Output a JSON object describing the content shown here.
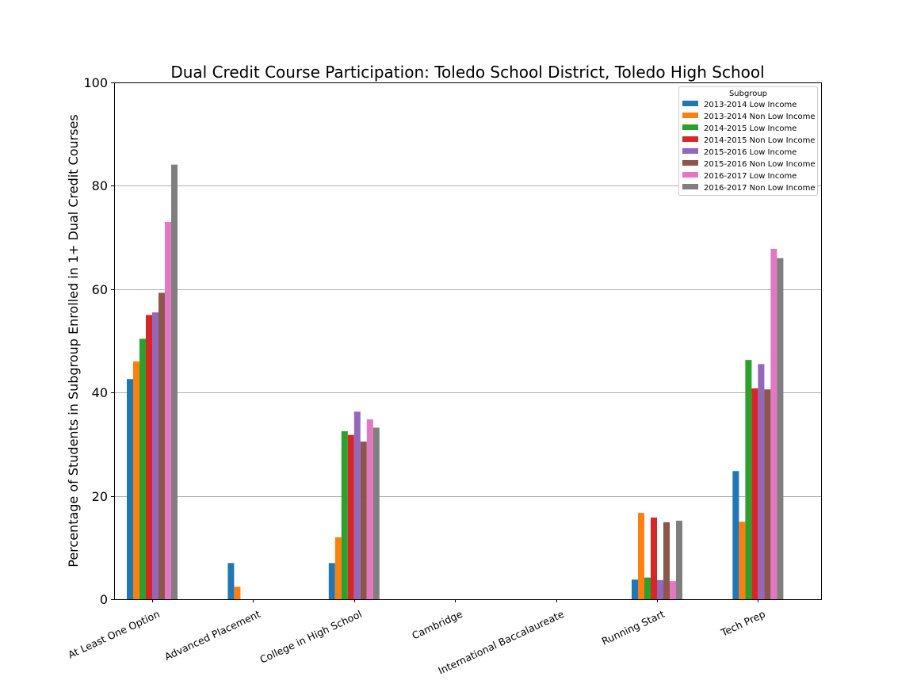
{
  "chart_data": {
    "type": "bar",
    "title": "Dual Credit Course Participation: Toledo School District, Toledo High School",
    "ylabel": "Percentage of Students in Subgroup Enrolled in 1+ Dual Credit Courses",
    "xlabel": "",
    "ylim": [
      0,
      100
    ],
    "yticks": [
      0,
      20,
      40,
      60,
      80,
      100
    ],
    "grid": "horizontal",
    "legend_title": "Subgroup",
    "legend_position": "top-right",
    "categories": [
      "At Least One Option",
      "Advanced Placement",
      "College in High School",
      "Cambridge",
      "International Baccalaureate",
      "Running Start",
      "Tech Prep"
    ],
    "series": [
      {
        "name": "2013-2014 Low Income",
        "color": "#1f77b4",
        "values": [
          42.6,
          7.0,
          7.0,
          0,
          0,
          3.8,
          24.8
        ]
      },
      {
        "name": "2013-2014 Non Low Income",
        "color": "#ff7f0e",
        "values": [
          46.0,
          2.4,
          12.0,
          0,
          0,
          16.7,
          15.0
        ]
      },
      {
        "name": "2014-2015 Low Income",
        "color": "#2ca02c",
        "values": [
          50.4,
          0,
          32.5,
          0,
          0,
          4.2,
          46.3
        ]
      },
      {
        "name": "2014-2015 Non Low Income",
        "color": "#d62728",
        "values": [
          55.0,
          0,
          31.8,
          0,
          0,
          15.8,
          40.8
        ]
      },
      {
        "name": "2015-2016 Low Income",
        "color": "#9467bd",
        "values": [
          55.5,
          0,
          36.3,
          0,
          0,
          3.7,
          45.5
        ]
      },
      {
        "name": "2015-2016 Non Low Income",
        "color": "#8c564b",
        "values": [
          59.3,
          0,
          30.5,
          0,
          0,
          14.9,
          40.6
        ]
      },
      {
        "name": "2016-2017 Low Income",
        "color": "#e377c2",
        "values": [
          73.0,
          0,
          34.8,
          0,
          0,
          3.5,
          67.8
        ]
      },
      {
        "name": "2016-2017 Non Low Income",
        "color": "#7f7f7f",
        "values": [
          84.1,
          0,
          33.2,
          0,
          0,
          15.2,
          66.0
        ]
      }
    ]
  }
}
